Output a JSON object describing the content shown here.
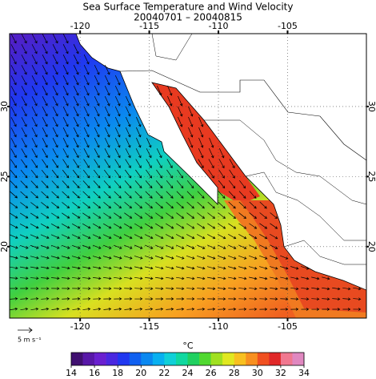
{
  "title": "Sea Surface Temperature and Wind Velocity",
  "subtitle": "20040701 – 20040815",
  "map": {
    "lonlim": [
      -125.1,
      -99.3
    ],
    "latlim": [
      14.9,
      35.2
    ],
    "lonticks": [
      -120,
      -115,
      -110,
      -105
    ],
    "latticks": [
      20,
      25,
      30
    ],
    "grid": true
  },
  "colorbar": {
    "label": "°C",
    "range": [
      14,
      34
    ],
    "ticks": [
      14,
      16,
      18,
      20,
      22,
      24,
      26,
      28,
      30,
      32,
      34
    ],
    "colors": [
      "#401070",
      "#5818a8",
      "#6a20d0",
      "#4a28e0",
      "#2038f0",
      "#1060f0",
      "#0a88f0",
      "#08b0f0",
      "#10d0d8",
      "#10d8a0",
      "#20d060",
      "#50d830",
      "#a0e020",
      "#e0e820",
      "#f8c020",
      "#f89020",
      "#f05020",
      "#e02828",
      "#f07890",
      "#e088c0"
    ]
  },
  "wind_scale": "5 m s⁻¹"
}
